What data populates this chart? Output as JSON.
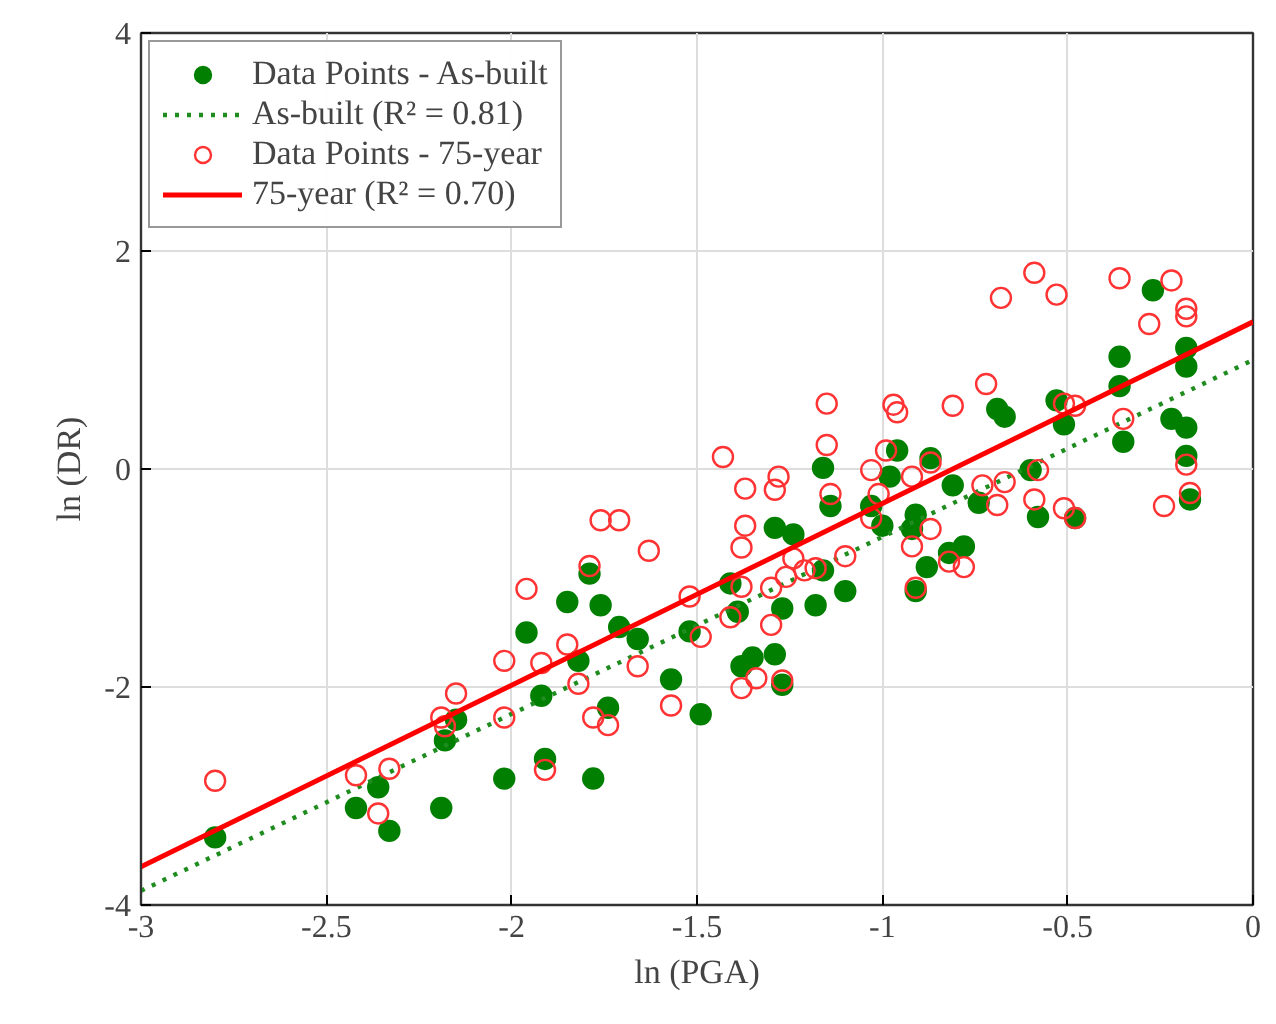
{
  "chart_data": {
    "type": "scatter",
    "xlabel": "ln (PGA)",
    "ylabel": "ln (DR)",
    "xlim": [
      -3,
      0
    ],
    "ylim": [
      -4,
      4
    ],
    "xticks": [
      -3,
      -2.5,
      -2,
      -1.5,
      -1,
      -0.5,
      0
    ],
    "yticks": [
      -4,
      -2,
      0,
      2,
      4
    ],
    "grid": true,
    "legend": "top left",
    "series": [
      {
        "name": "Data Points - As-built",
        "marker": "circle",
        "color": "#007f00",
        "x": [
          -2.8,
          -2.42,
          -2.36,
          -2.33,
          -2.19,
          -2.18,
          -2.15,
          -2.02,
          -1.96,
          -1.92,
          -1.91,
          -1.85,
          -1.79,
          -1.82,
          -1.78,
          -1.76,
          -1.74,
          -1.71,
          -1.66,
          -1.57,
          -1.52,
          -1.49,
          -1.41,
          -1.39,
          -1.38,
          -1.35,
          -1.29,
          -1.27,
          -1.29,
          -1.24,
          -1.27,
          -1.18,
          -1.16,
          -1.1,
          -1.16,
          -1.14,
          -1.03,
          -1.0,
          -0.96,
          -0.98,
          -0.91,
          -0.92,
          -0.87,
          -0.88,
          -0.91,
          -0.81,
          -0.78,
          -0.82,
          -0.74,
          -0.69,
          -0.67,
          -0.6,
          -0.58,
          -0.53,
          -0.51,
          -0.48,
          -0.36,
          -0.36,
          -0.35,
          -0.27,
          -0.22,
          -0.18,
          -0.18,
          -0.18,
          -0.18,
          -0.17
        ],
        "values": [
          -3.38,
          -3.11,
          -2.92,
          -3.32,
          -3.11,
          -2.49,
          -2.3,
          -2.84,
          -1.5,
          -2.08,
          -2.66,
          -1.22,
          -0.96,
          -1.76,
          -2.84,
          -1.25,
          -2.19,
          -1.45,
          -1.56,
          -1.93,
          -1.49,
          -2.25,
          -1.05,
          -1.31,
          -1.81,
          -1.73,
          -1.7,
          -1.98,
          -0.54,
          -0.6,
          -1.28,
          -1.25,
          -0.93,
          -1.12,
          0.01,
          -0.34,
          -0.34,
          -0.52,
          0.17,
          -0.07,
          -0.42,
          -0.55,
          0.1,
          -0.9,
          -1.12,
          -0.15,
          -0.71,
          -0.77,
          -0.31,
          0.55,
          0.48,
          -0.01,
          -0.44,
          0.63,
          0.41,
          -0.45,
          1.03,
          0.76,
          0.25,
          1.64,
          0.46,
          0.38,
          1.11,
          0.94,
          0.12,
          -0.28
        ]
      },
      {
        "name": "As-built (R² = 0.81)",
        "type": "line",
        "line_style": "dotted",
        "color": "#1e8c1e",
        "x": [
          -3,
          0
        ],
        "values": [
          -3.87,
          1.0
        ]
      },
      {
        "name": "Data Points - 75-year",
        "marker": "circle",
        "color": "#ff3333",
        "x": [
          -2.8,
          -2.42,
          -2.33,
          -2.36,
          -2.19,
          -2.18,
          -2.15,
          -2.02,
          -2.02,
          -1.96,
          -1.92,
          -1.91,
          -1.85,
          -1.82,
          -1.79,
          -1.78,
          -1.76,
          -1.71,
          -1.74,
          -1.66,
          -1.63,
          -1.57,
          -1.52,
          -1.49,
          -1.43,
          -1.37,
          -1.37,
          -1.38,
          -1.38,
          -1.41,
          -1.38,
          -1.34,
          -1.3,
          -1.3,
          -1.29,
          -1.28,
          -1.27,
          -1.26,
          -1.24,
          -1.21,
          -1.18,
          -1.15,
          -1.15,
          -1.14,
          -1.1,
          -1.03,
          -1.03,
          -1.01,
          -0.99,
          -0.97,
          -0.96,
          -0.92,
          -0.92,
          -0.91,
          -0.87,
          -0.87,
          -0.82,
          -0.78,
          -0.81,
          -0.73,
          -0.72,
          -0.69,
          -0.67,
          -0.68,
          -0.59,
          -0.59,
          -0.58,
          -0.53,
          -0.51,
          -0.48,
          -0.51,
          -0.48,
          -0.36,
          -0.35,
          -0.28,
          -0.24,
          -0.22,
          -0.18,
          -0.18,
          -0.18,
          -0.17
        ],
        "values": [
          -2.86,
          -2.81,
          -2.75,
          -3.16,
          -2.28,
          -2.36,
          -2.06,
          -1.76,
          -2.28,
          -1.1,
          -1.78,
          -2.76,
          -1.61,
          -1.97,
          -0.89,
          -2.28,
          -0.47,
          -0.47,
          -2.35,
          -1.81,
          -0.75,
          -2.17,
          -1.17,
          -1.54,
          0.11,
          -0.18,
          -0.52,
          -0.72,
          -1.08,
          -1.36,
          -2.01,
          -1.92,
          -1.43,
          -1.09,
          -0.19,
          -0.07,
          -1.94,
          -0.99,
          -0.82,
          -0.93,
          -0.91,
          0.6,
          0.22,
          -0.23,
          -0.8,
          -0.01,
          -0.45,
          -0.23,
          0.17,
          0.59,
          0.52,
          -0.07,
          -0.71,
          -1.09,
          0.06,
          -0.55,
          -0.85,
          -0.9,
          0.58,
          -0.15,
          0.78,
          -0.33,
          -0.12,
          1.57,
          1.8,
          -0.28,
          -0.01,
          1.6,
          -0.36,
          -0.45,
          0.6,
          0.58,
          1.75,
          0.46,
          1.33,
          -0.34,
          1.73,
          1.47,
          1.4,
          0.04,
          -0.22
        ]
      },
      {
        "name": "75-year (R² = 0.70)",
        "type": "line",
        "line_style": "solid",
        "color": "#ff0000",
        "x": [
          -3,
          0
        ],
        "values": [
          -3.65,
          1.35
        ]
      }
    ]
  }
}
